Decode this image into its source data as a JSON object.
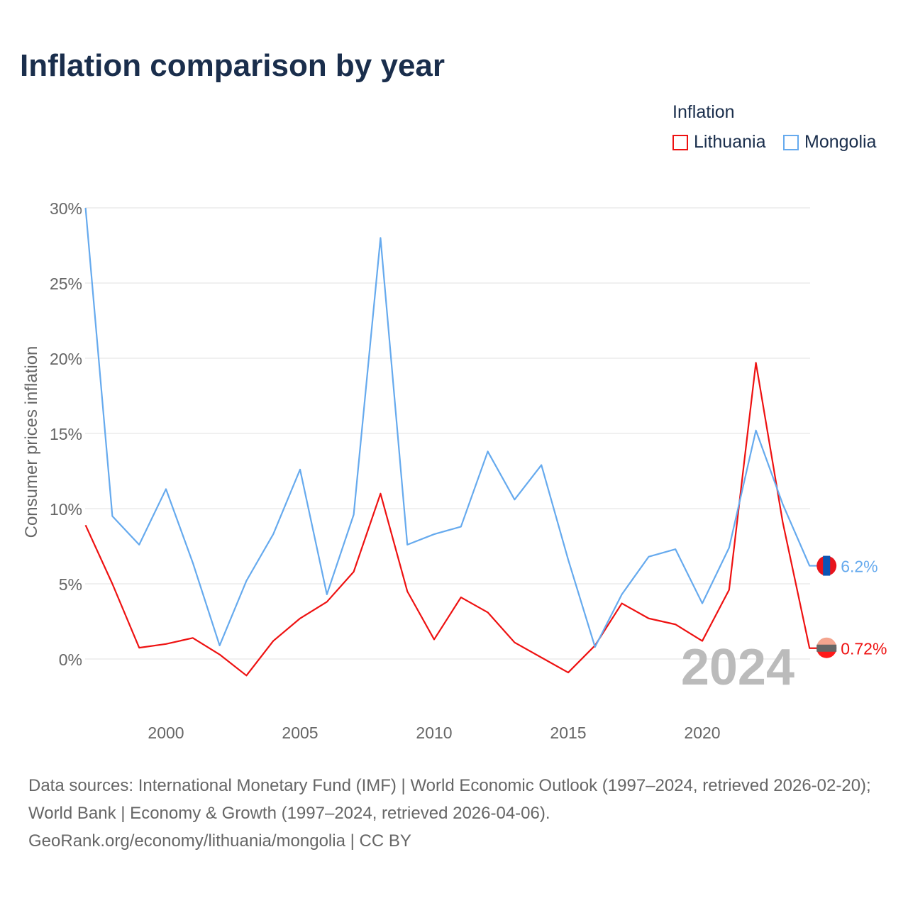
{
  "title": "Inflation comparison by year",
  "legend": {
    "title": "Inflation",
    "items": [
      {
        "name": "Lithuania",
        "color": "#ee1111"
      },
      {
        "name": "Mongolia",
        "color": "#66aaee"
      }
    ]
  },
  "source": {
    "line1": "Data sources: International Monetary Fund (IMF) | World Economic Outlook (1997–2024, retrieved 2026-02-20); World Bank | Economy & Growth (1997–2024, retrieved 2026-04-06).",
    "line2": "GeoRank.org/economy/lithuania/mongolia | CC BY"
  },
  "chart_data": {
    "type": "line",
    "title": "Inflation comparison by year",
    "xlabel": "",
    "ylabel": "Consumer prices inflation",
    "xlim": [
      1997,
      2024
    ],
    "ylim": [
      -3,
      30
    ],
    "xticks": [
      2000,
      2005,
      2010,
      2015,
      2020
    ],
    "yticks": [
      0,
      5,
      10,
      15,
      20,
      25,
      30
    ],
    "ytick_labels": [
      "0%",
      "5%",
      "10%",
      "15%",
      "20%",
      "25%",
      "30%"
    ],
    "grid": true,
    "legend_position": "top-right",
    "annotation": "2024",
    "x": [
      1997,
      1998,
      1999,
      2000,
      2001,
      2002,
      2003,
      2004,
      2005,
      2006,
      2007,
      2008,
      2009,
      2010,
      2011,
      2012,
      2013,
      2014,
      2015,
      2016,
      2017,
      2018,
      2019,
      2020,
      2021,
      2022,
      2023,
      2024
    ],
    "series": [
      {
        "name": "Lithuania",
        "color": "#ee1111",
        "end_label": "0.72%",
        "values": [
          8.9,
          5.0,
          0.75,
          1.0,
          1.4,
          0.3,
          -1.1,
          1.2,
          2.7,
          3.8,
          5.8,
          11.0,
          4.5,
          1.3,
          4.1,
          3.1,
          1.1,
          0.1,
          -0.9,
          0.9,
          3.7,
          2.7,
          2.3,
          1.2,
          4.6,
          19.7,
          9.1,
          0.72
        ]
      },
      {
        "name": "Mongolia",
        "color": "#66aaee",
        "end_label": "6.2%",
        "values": [
          30.0,
          9.5,
          7.6,
          11.3,
          6.4,
          0.9,
          5.2,
          8.3,
          12.6,
          4.3,
          9.6,
          28.0,
          7.6,
          8.3,
          8.8,
          13.8,
          10.6,
          12.9,
          6.6,
          0.8,
          4.3,
          6.8,
          7.3,
          3.7,
          7.4,
          15.2,
          10.3,
          6.2
        ]
      }
    ]
  }
}
